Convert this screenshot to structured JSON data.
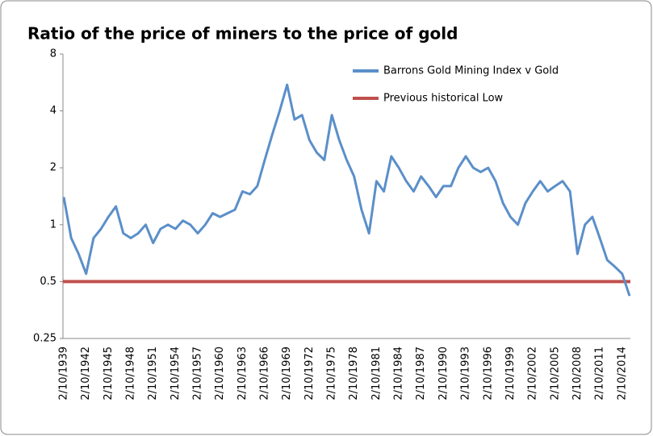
{
  "chart_data": {
    "type": "line",
    "title": "Ratio of the price of miners to the price of gold",
    "categories": [
      "2/10/1939",
      null,
      null,
      "2/10/1942",
      null,
      null,
      "2/10/1945",
      null,
      null,
      "2/10/1948",
      null,
      null,
      "2/10/1951",
      null,
      null,
      "2/10/1954",
      null,
      null,
      "2/10/1957",
      null,
      null,
      "2/10/1960",
      null,
      null,
      "2/10/1963",
      null,
      null,
      "2/10/1966",
      null,
      null,
      "2/10/1969",
      null,
      null,
      "2/10/1972",
      null,
      null,
      "2/10/1975",
      null,
      null,
      "2/10/1978",
      null,
      null,
      "2/10/1981",
      null,
      null,
      "2/10/1984",
      null,
      null,
      "2/10/1987",
      null,
      null,
      "2/10/1990",
      null,
      null,
      "2/10/1993",
      null,
      null,
      "2/10/1996",
      null,
      null,
      "2/10/1999",
      null,
      null,
      "2/10/2002",
      null,
      null,
      "2/10/2005",
      null,
      null,
      "2/10/2008",
      null,
      null,
      "2/10/2011",
      null,
      null,
      "2/10/2014",
      null
    ],
    "series": [
      {
        "name": "Barrons Gold Mining Index v  Gold",
        "color": "#5b8fc9",
        "values": [
          1.4,
          0.85,
          0.7,
          0.55,
          0.85,
          0.95,
          1.1,
          1.25,
          0.9,
          0.85,
          0.9,
          1.0,
          0.8,
          0.95,
          1.0,
          0.95,
          1.05,
          1.0,
          0.9,
          1.0,
          1.15,
          1.1,
          1.15,
          1.2,
          1.5,
          1.45,
          1.6,
          2.2,
          3.0,
          4.0,
          5.5,
          3.6,
          3.8,
          2.8,
          2.4,
          2.2,
          3.8,
          2.8,
          2.2,
          1.8,
          1.2,
          0.9,
          1.7,
          1.5,
          2.3,
          2.0,
          1.7,
          1.5,
          1.8,
          1.6,
          1.4,
          1.6,
          1.6,
          2.0,
          2.3,
          2.0,
          1.9,
          2.0,
          1.7,
          1.3,
          1.1,
          1.0,
          1.3,
          1.5,
          1.7,
          1.5,
          1.6,
          1.7,
          1.5,
          0.7,
          1.0,
          1.1,
          0.85,
          0.65,
          0.6,
          0.55,
          0.42
        ]
      }
    ],
    "reference_line": {
      "name": "Previous historical Low",
      "color": "#c0504d",
      "value": 0.5
    },
    "ylim": [
      0.25,
      8
    ],
    "yticks": [
      0.25,
      0.5,
      1,
      2,
      4,
      8
    ],
    "log_scale": true,
    "grid": false,
    "legend": "upper right"
  }
}
